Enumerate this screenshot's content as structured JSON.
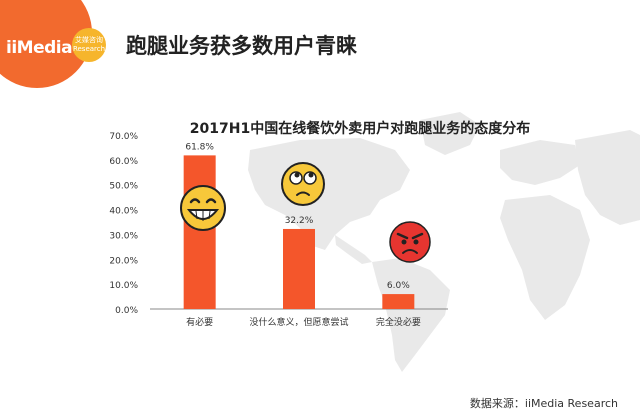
{
  "header": {
    "logo_text": "iiMedia",
    "logo_badge_line1": "艾媒咨询",
    "logo_badge_line2": "Research",
    "page_title": "跑腿业务获多数用户青睐"
  },
  "footer": {
    "source": "数据来源：iiMedia Research"
  },
  "colors": {
    "accent": "#f26a2e",
    "bar": "#f4562b",
    "map": "#e8e8e8",
    "badge": "#f6b52c"
  },
  "icons": [
    "laughing-emoji-icon",
    "thinking-emoji-icon",
    "angry-emoji-icon",
    "world-map-background"
  ],
  "chart_data": {
    "type": "bar",
    "title": "2017H1中国在线餐饮外卖用户对跑腿业务的态度分布",
    "categories": [
      "有必要",
      "没什么意义，但愿意尝试",
      "完全没必要"
    ],
    "values": [
      61.8,
      32.2,
      6.0
    ],
    "value_labels": [
      "61.8%",
      "32.2%",
      "6.0%"
    ],
    "ylim": [
      0,
      70
    ],
    "yticks": [
      "0.0%",
      "10.0%",
      "20.0%",
      "30.0%",
      "40.0%",
      "50.0%",
      "60.0%",
      "70.0%"
    ],
    "xlabel": "",
    "ylabel": "",
    "grid": false,
    "legend": "none"
  }
}
